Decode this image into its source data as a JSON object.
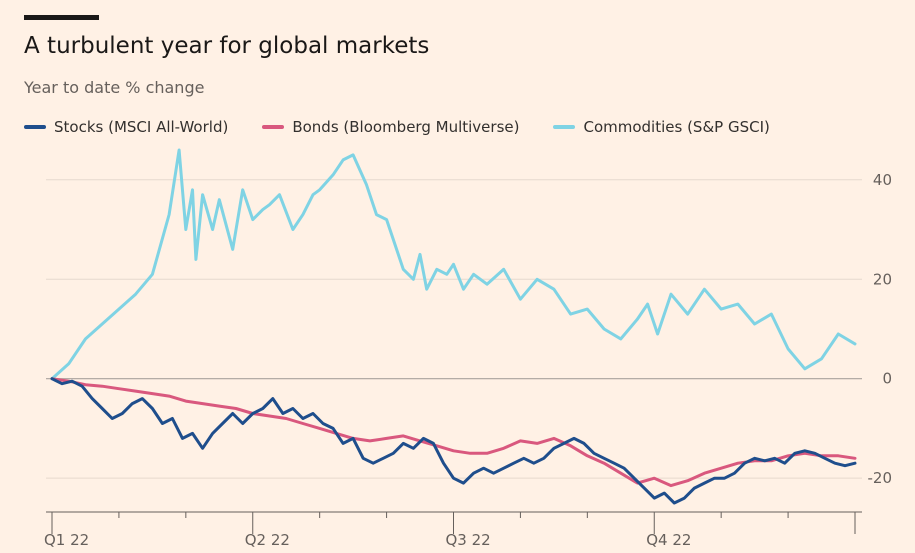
{
  "title": "A turbulent year for global markets",
  "subtitle": "Year to date % change",
  "legend": [
    {
      "label": "Stocks (MSCI All-World)",
      "color": "#1f4e8c"
    },
    {
      "label": "Bonds (Bloomberg Multiverse)",
      "color": "#d9587e"
    },
    {
      "label": "Commodities (S&P GSCI)",
      "color": "#7fd3e4"
    }
  ],
  "chart_data": {
    "type": "line",
    "title": "A turbulent year for global markets",
    "ylabel": "Year to date % change",
    "xlim": [
      0,
      12
    ],
    "ylim": [
      -26,
      47
    ],
    "y_ticks": [
      40,
      20,
      0,
      -20
    ],
    "x_ticks": [
      {
        "value": 0,
        "label": "Q1 22"
      },
      {
        "value": 3,
        "label": "Q2 22"
      },
      {
        "value": 6,
        "label": "Q3 22"
      },
      {
        "value": 9,
        "label": "Q4 22"
      }
    ],
    "series": [
      {
        "name": "Commodities (S&P GSCI)",
        "color": "#7fd3e4",
        "x": [
          0,
          0.25,
          0.5,
          0.75,
          1.0,
          1.25,
          1.5,
          1.75,
          1.9,
          2.0,
          2.1,
          2.15,
          2.25,
          2.4,
          2.5,
          2.7,
          2.85,
          3.0,
          3.15,
          3.25,
          3.4,
          3.6,
          3.75,
          3.9,
          4.0,
          4.2,
          4.35,
          4.5,
          4.7,
          4.85,
          5.0,
          5.1,
          5.25,
          5.4,
          5.5,
          5.6,
          5.75,
          5.9,
          6.0,
          6.15,
          6.3,
          6.5,
          6.75,
          7.0,
          7.25,
          7.5,
          7.75,
          8.0,
          8.25,
          8.5,
          8.75,
          8.9,
          9.05,
          9.25,
          9.5,
          9.75,
          10.0,
          10.25,
          10.5,
          10.75,
          11.0,
          11.25,
          11.5,
          11.75,
          12.0
        ],
        "values": [
          0,
          3,
          8,
          11,
          14,
          17,
          21,
          33,
          46,
          30,
          38,
          24,
          37,
          30,
          36,
          26,
          38,
          32,
          34,
          35,
          37,
          30,
          33,
          37,
          38,
          41,
          44,
          45,
          39,
          33,
          32,
          28,
          22,
          20,
          25,
          18,
          22,
          21,
          23,
          18,
          21,
          19,
          22,
          16,
          20,
          18,
          13,
          14,
          10,
          8,
          12,
          15,
          9,
          17,
          13,
          18,
          14,
          15,
          11,
          13,
          6,
          2,
          4,
          9,
          7
        ]
      },
      {
        "name": "Bonds (Bloomberg Multiverse)",
        "color": "#d9587e",
        "x": [
          0,
          0.25,
          0.5,
          0.75,
          1.0,
          1.25,
          1.5,
          1.75,
          2.0,
          2.25,
          2.5,
          2.75,
          3.0,
          3.25,
          3.5,
          3.75,
          4.0,
          4.25,
          4.5,
          4.75,
          5.0,
          5.25,
          5.5,
          5.75,
          6.0,
          6.25,
          6.5,
          6.75,
          7.0,
          7.25,
          7.5,
          7.75,
          8.0,
          8.25,
          8.5,
          8.75,
          9.0,
          9.25,
          9.5,
          9.75,
          10.0,
          10.25,
          10.5,
          10.75,
          11.0,
          11.25,
          11.5,
          11.75,
          12.0
        ],
        "values": [
          0,
          -0.5,
          -1.2,
          -1.5,
          -2,
          -2.5,
          -3,
          -3.5,
          -4.5,
          -5,
          -5.5,
          -6,
          -7,
          -7.5,
          -8,
          -9,
          -10,
          -11,
          -12,
          -12.5,
          -12,
          -11.5,
          -12.5,
          -13.5,
          -14.5,
          -15,
          -15,
          -14,
          -12.5,
          -13,
          -12,
          -13.5,
          -15.5,
          -17,
          -19,
          -21,
          -20,
          -21.5,
          -20.5,
          -19,
          -18,
          -17,
          -16.5,
          -16.5,
          -15.5,
          -15,
          -15.5,
          -15.5,
          -16
        ]
      },
      {
        "name": "Stocks (MSCI All-World)",
        "color": "#1f4e8c",
        "x": [
          0,
          0.15,
          0.3,
          0.45,
          0.6,
          0.75,
          0.9,
          1.05,
          1.2,
          1.35,
          1.5,
          1.65,
          1.8,
          1.95,
          2.1,
          2.25,
          2.4,
          2.55,
          2.7,
          2.85,
          3.0,
          3.15,
          3.3,
          3.45,
          3.6,
          3.75,
          3.9,
          4.05,
          4.2,
          4.35,
          4.5,
          4.65,
          4.8,
          4.95,
          5.1,
          5.25,
          5.4,
          5.55,
          5.7,
          5.85,
          6.0,
          6.15,
          6.3,
          6.45,
          6.6,
          6.75,
          6.9,
          7.05,
          7.2,
          7.35,
          7.5,
          7.65,
          7.8,
          7.95,
          8.1,
          8.25,
          8.4,
          8.55,
          8.7,
          8.85,
          9.0,
          9.15,
          9.3,
          9.45,
          9.6,
          9.75,
          9.9,
          10.05,
          10.2,
          10.35,
          10.5,
          10.65,
          10.8,
          10.95,
          11.1,
          11.25,
          11.4,
          11.55,
          11.7,
          11.85,
          12.0
        ],
        "values": [
          0,
          -1,
          -0.5,
          -1.5,
          -4,
          -6,
          -8,
          -7,
          -5,
          -4,
          -6,
          -9,
          -8,
          -12,
          -11,
          -14,
          -11,
          -9,
          -7,
          -9,
          -7,
          -6,
          -4,
          -7,
          -6,
          -8,
          -7,
          -9,
          -10,
          -13,
          -12,
          -16,
          -17,
          -16,
          -15,
          -13,
          -14,
          -12,
          -13,
          -17,
          -20,
          -21,
          -19,
          -18,
          -19,
          -18,
          -17,
          -16,
          -17,
          -16,
          -14,
          -13,
          -12,
          -13,
          -15,
          -16,
          -17,
          -18,
          -20,
          -22,
          -24,
          -23,
          -25,
          -24,
          -22,
          -21,
          -20,
          -20,
          -19,
          -17,
          -16,
          -16.5,
          -16,
          -17,
          -15,
          -14.5,
          -15,
          -16,
          -17,
          -17.5,
          -17
        ]
      }
    ]
  }
}
